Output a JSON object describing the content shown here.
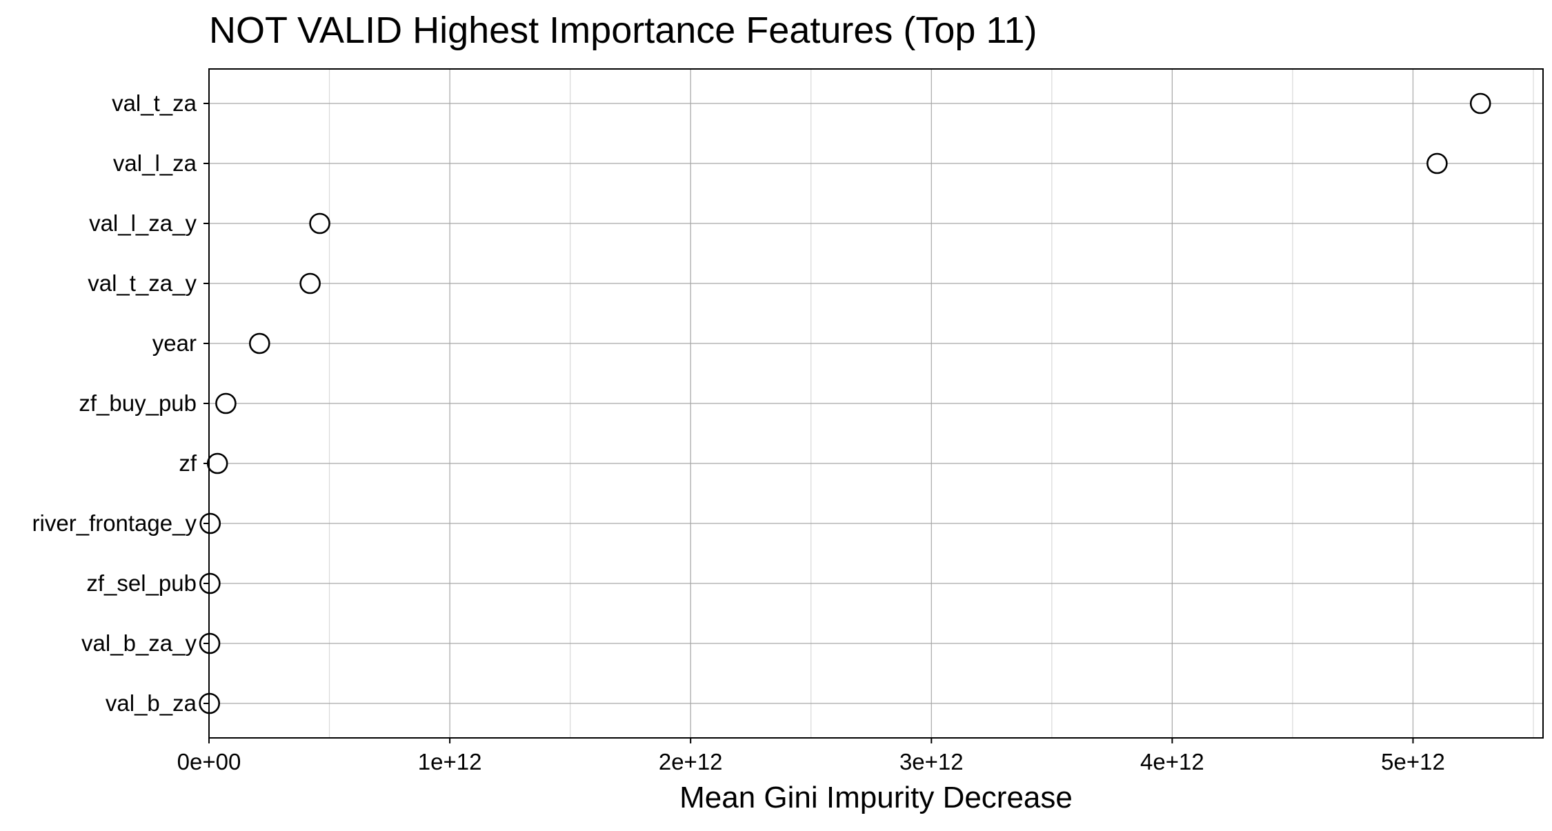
{
  "chart_data": {
    "type": "scatter",
    "title": "NOT VALID Highest Importance Features (Top 11)",
    "xlabel": "Mean Gini Impurity Decrease",
    "ylabel": "",
    "xlim": [
      0,
      5540000000000.0
    ],
    "grid": true,
    "x_ticks": [
      0,
      1000000000000.0,
      2000000000000.0,
      3000000000000.0,
      4000000000000.0,
      5000000000000.0
    ],
    "x_tick_labels": [
      "0e+00",
      "1e+12",
      "2e+12",
      "3e+12",
      "4e+12",
      "5e+12"
    ],
    "x_minor_ticks": [
      500000000000.0,
      1500000000000.0,
      2500000000000.0,
      3500000000000.0,
      4500000000000.0,
      5500000000000.0
    ],
    "categories": [
      "val_t_za",
      "val_l_za",
      "val_l_za_y",
      "val_t_za_y",
      "year",
      "zf_buy_pub",
      "zf",
      "river_frontage_y",
      "zf_sel_pub",
      "val_b_za_y",
      "val_b_za"
    ],
    "values": [
      5280000000000.0,
      5100000000000.0,
      460000000000.0,
      420000000000.0,
      210000000000.0,
      70000000000.0,
      35000000000.0,
      5000000000.0,
      4000000000.0,
      3000000000.0,
      2000000000.0
    ],
    "marker": "open-circle",
    "marker_color": "#000000"
  }
}
